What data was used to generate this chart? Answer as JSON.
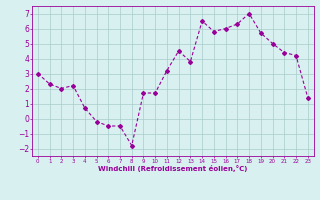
{
  "x": [
    0,
    1,
    2,
    3,
    4,
    5,
    6,
    7,
    8,
    9,
    10,
    11,
    12,
    13,
    14,
    15,
    16,
    17,
    18,
    19,
    20,
    21,
    22,
    23
  ],
  "y": [
    3.0,
    2.3,
    2.0,
    2.2,
    0.7,
    -0.2,
    -0.5,
    -0.5,
    -1.8,
    1.7,
    1.7,
    3.2,
    4.5,
    3.8,
    6.5,
    5.8,
    6.0,
    6.3,
    7.0,
    5.7,
    5.0,
    4.4,
    4.2,
    1.4
  ],
  "line_color": "#990099",
  "marker": "D",
  "marker_size": 2,
  "bg_color": "#d8f0f0",
  "grid_color": "#aacccc",
  "xlabel": "Windchill (Refroidissement éolien,°C)",
  "xlabel_color": "#990099",
  "tick_color": "#990099",
  "xlim": [
    -0.5,
    23.5
  ],
  "ylim": [
    -2.5,
    7.5
  ],
  "yticks": [
    -2,
    -1,
    0,
    1,
    2,
    3,
    4,
    5,
    6,
    7
  ],
  "xticks": [
    0,
    1,
    2,
    3,
    4,
    5,
    6,
    7,
    8,
    9,
    10,
    11,
    12,
    13,
    14,
    15,
    16,
    17,
    18,
    19,
    20,
    21,
    22,
    23
  ],
  "xtick_labels": [
    "0",
    "1",
    "2",
    "3",
    "4",
    "5",
    "6",
    "7",
    "8",
    "9",
    "10",
    "11",
    "12",
    "13",
    "14",
    "15",
    "16",
    "17",
    "18",
    "19",
    "20",
    "21",
    "22",
    "23"
  ]
}
